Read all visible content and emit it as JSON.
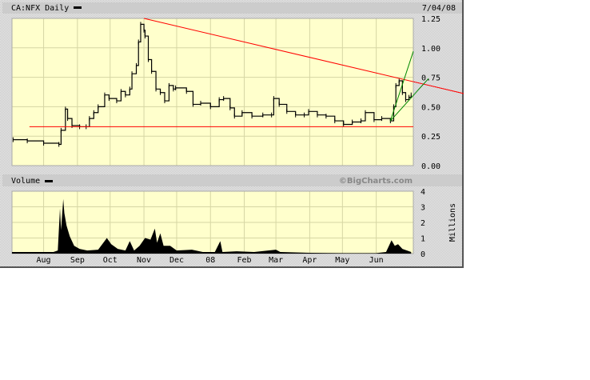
{
  "header": {
    "symbol_title": "CA:NFX Daily",
    "date": "7/04/08"
  },
  "volume_header": {
    "title": "Volume",
    "brand": "©BigCharts.com"
  },
  "colors": {
    "plot_bg": "#ffffcc",
    "grid": "#d6d6a4",
    "price": "#000000",
    "resistance": "#ff0000",
    "support": "#ff0000",
    "trend": "#008800",
    "header_bg": "#cccccc"
  },
  "chart_data": [
    {
      "type": "line",
      "title": "CA:NFX Daily",
      "xlim": [
        "2007-07-03",
        "2008-07-05"
      ],
      "ylim": [
        0,
        1.25
      ],
      "yticks": [
        "0.00",
        "0.25",
        "0.50",
        "0.75",
        "1.00",
        "1.25"
      ],
      "grid": true,
      "series": [
        {
          "name": "CA:NFX",
          "points": [
            [
              "2007-07-04",
              0.22
            ],
            [
              "2007-07-17",
              0.21
            ],
            [
              "2007-08-01",
              0.19
            ],
            [
              "2007-08-15",
              0.18
            ],
            [
              "2007-08-17",
              0.3
            ],
            [
              "2007-08-21",
              0.48
            ],
            [
              "2007-08-23",
              0.4
            ],
            [
              "2007-08-27",
              0.34
            ],
            [
              "2007-09-03",
              0.33
            ],
            [
              "2007-09-09",
              0.33
            ],
            [
              "2007-09-12",
              0.4
            ],
            [
              "2007-09-16",
              0.45
            ],
            [
              "2007-09-20",
              0.5
            ],
            [
              "2007-09-26",
              0.6
            ],
            [
              "2007-09-30",
              0.57
            ],
            [
              "2007-10-07",
              0.55
            ],
            [
              "2007-10-11",
              0.63
            ],
            [
              "2007-10-15",
              0.6
            ],
            [
              "2007-10-19",
              0.65
            ],
            [
              "2007-10-21",
              0.78
            ],
            [
              "2007-10-25",
              0.85
            ],
            [
              "2007-10-27",
              1.05
            ],
            [
              "2007-10-29",
              1.2
            ],
            [
              "2007-11-01",
              1.15
            ],
            [
              "2007-11-02",
              1.1
            ],
            [
              "2007-11-05",
              0.9
            ],
            [
              "2007-11-08",
              0.8
            ],
            [
              "2007-11-12",
              0.65
            ],
            [
              "2007-11-16",
              0.62
            ],
            [
              "2007-11-20",
              0.55
            ],
            [
              "2007-11-24",
              0.68
            ],
            [
              "2007-11-28",
              0.65
            ],
            [
              "2007-11-30",
              0.66
            ],
            [
              "2007-12-10",
              0.63
            ],
            [
              "2007-12-16",
              0.52
            ],
            [
              "2007-12-23",
              0.53
            ],
            [
              "2008-01-01",
              0.5
            ],
            [
              "2008-01-09",
              0.56
            ],
            [
              "2008-01-13",
              0.57
            ],
            [
              "2008-01-19",
              0.49
            ],
            [
              "2008-01-23",
              0.42
            ],
            [
              "2008-01-30",
              0.45
            ],
            [
              "2008-02-08",
              0.42
            ],
            [
              "2008-02-18",
              0.43
            ],
            [
              "2008-02-26",
              0.43
            ],
            [
              "2008-02-28",
              0.57
            ],
            [
              "2008-03-04",
              0.52
            ],
            [
              "2008-03-11",
              0.46
            ],
            [
              "2008-03-19",
              0.43
            ],
            [
              "2008-03-27",
              0.43
            ],
            [
              "2008-03-31",
              0.46
            ],
            [
              "2008-04-08",
              0.43
            ],
            [
              "2008-04-16",
              0.42
            ],
            [
              "2008-04-24",
              0.38
            ],
            [
              "2008-05-02",
              0.35
            ],
            [
              "2008-05-10",
              0.37
            ],
            [
              "2008-05-18",
              0.38
            ],
            [
              "2008-05-22",
              0.45
            ],
            [
              "2008-05-30",
              0.39
            ],
            [
              "2008-06-06",
              0.4
            ],
            [
              "2008-06-14",
              0.38
            ],
            [
              "2008-06-17",
              0.5
            ],
            [
              "2008-06-19",
              0.68
            ],
            [
              "2008-06-22",
              0.72
            ],
            [
              "2008-06-25",
              0.62
            ],
            [
              "2008-06-28",
              0.56
            ],
            [
              "2008-07-01",
              0.58
            ],
            [
              "2008-07-03",
              0.6
            ]
          ]
        }
      ],
      "annotations": [
        {
          "kind": "resistance",
          "from": [
            "2007-11-01",
            1.25
          ],
          "to": [
            "2008-08-21",
            0.61
          ]
        },
        {
          "kind": "support",
          "from": [
            "2007-07-19",
            0.33
          ],
          "to": [
            "2008-07-05",
            0.33
          ]
        },
        {
          "kind": "trend",
          "from": [
            "2008-06-14",
            0.38
          ],
          "to": [
            "2008-07-05",
            0.97
          ]
        },
        {
          "kind": "trend",
          "from": [
            "2008-06-14",
            0.38
          ],
          "to": [
            "2008-07-19",
            0.74
          ]
        }
      ]
    },
    {
      "type": "area",
      "title": "Volume",
      "ylabel": "Millions",
      "xlim": [
        "2007-07-03",
        "2008-07-05"
      ],
      "ylim": [
        0,
        4
      ],
      "yticks": [
        "0",
        "1",
        "2",
        "3",
        "4"
      ],
      "grid": true,
      "xticks": [
        [
          "2007-08-01",
          "Aug"
        ],
        [
          "2007-09-01",
          "Sep"
        ],
        [
          "2007-10-01",
          "Oct"
        ],
        [
          "2007-11-01",
          "Nov"
        ],
        [
          "2007-12-01",
          "Dec"
        ],
        [
          "2008-01-01",
          "08"
        ],
        [
          "2008-02-01",
          "Feb"
        ],
        [
          "2008-03-01",
          "Mar"
        ],
        [
          "2008-04-01",
          "Apr"
        ],
        [
          "2008-05-01",
          "May"
        ],
        [
          "2008-06-01",
          "Jun"
        ]
      ],
      "series": [
        {
          "name": "Volume",
          "points": [
            [
              "2007-07-03",
              0.1
            ],
            [
              "2007-07-20",
              0.1
            ],
            [
              "2007-08-10",
              0.1
            ],
            [
              "2007-08-14",
              0.2
            ],
            [
              "2007-08-16",
              2.9
            ],
            [
              "2007-08-17",
              1.5
            ],
            [
              "2007-08-19",
              3.5
            ],
            [
              "2007-08-20",
              2.6
            ],
            [
              "2007-08-22",
              1.8
            ],
            [
              "2007-08-25",
              1.1
            ],
            [
              "2007-08-29",
              0.5
            ],
            [
              "2007-09-03",
              0.3
            ],
            [
              "2007-09-10",
              0.2
            ],
            [
              "2007-09-20",
              0.25
            ],
            [
              "2007-09-28",
              1.0
            ],
            [
              "2007-10-02",
              0.6
            ],
            [
              "2007-10-08",
              0.3
            ],
            [
              "2007-10-15",
              0.2
            ],
            [
              "2007-10-19",
              0.8
            ],
            [
              "2007-10-23",
              0.2
            ],
            [
              "2007-10-28",
              0.5
            ],
            [
              "2007-11-02",
              1.0
            ],
            [
              "2007-11-07",
              0.9
            ],
            [
              "2007-11-11",
              1.6
            ],
            [
              "2007-11-13",
              0.7
            ],
            [
              "2007-11-16",
              1.3
            ],
            [
              "2007-11-19",
              0.5
            ],
            [
              "2007-11-25",
              0.5
            ],
            [
              "2007-12-01",
              0.2
            ],
            [
              "2007-12-15",
              0.25
            ],
            [
              "2007-12-25",
              0.1
            ],
            [
              "2008-01-05",
              0.1
            ],
            [
              "2008-01-10",
              0.8
            ],
            [
              "2008-01-12",
              0.1
            ],
            [
              "2008-01-25",
              0.15
            ],
            [
              "2008-02-10",
              0.1
            ],
            [
              "2008-03-01",
              0.25
            ],
            [
              "2008-03-05",
              0.1
            ],
            [
              "2008-04-01",
              0.05
            ],
            [
              "2008-05-01",
              0.03
            ],
            [
              "2008-06-01",
              0.03
            ],
            [
              "2008-06-10",
              0.1
            ],
            [
              "2008-06-15",
              0.85
            ],
            [
              "2008-06-18",
              0.5
            ],
            [
              "2008-06-21",
              0.6
            ],
            [
              "2008-06-25",
              0.3
            ],
            [
              "2008-07-03",
              0.1
            ]
          ]
        }
      ]
    }
  ]
}
